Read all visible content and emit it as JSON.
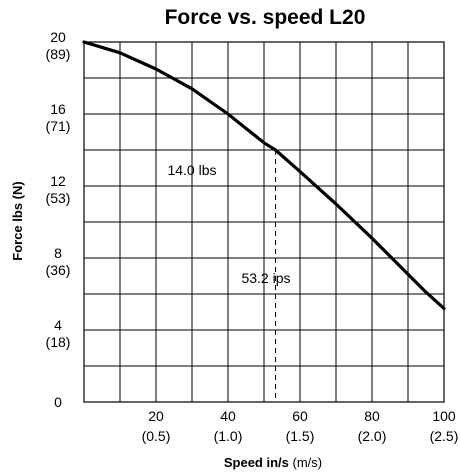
{
  "chart_data": {
    "type": "line",
    "title": "Force vs. speed L20",
    "xlabel_main": "Speed in/s",
    "xlabel_unit": "(m/s)",
    "ylabel": "Force lbs (N)",
    "xlim": [
      0,
      100
    ],
    "ylim": [
      0,
      20
    ],
    "grid": true,
    "x_ticks": [
      {
        "value": 20,
        "label": "20",
        "sub": "(0.5)"
      },
      {
        "value": 40,
        "label": "40",
        "sub": "(1.0)"
      },
      {
        "value": 60,
        "label": "60",
        "sub": "(1.5)"
      },
      {
        "value": 80,
        "label": "80",
        "sub": "(2.0)"
      },
      {
        "value": 100,
        "label": "100",
        "sub": "(2.5)"
      }
    ],
    "y_ticks": [
      {
        "value": 0,
        "label": "0",
        "sub": ""
      },
      {
        "value": 4,
        "label": "4",
        "sub": "(18)"
      },
      {
        "value": 8,
        "label": "8",
        "sub": "(36)"
      },
      {
        "value": 12,
        "label": "12",
        "sub": "(53)"
      },
      {
        "value": 16,
        "label": "16",
        "sub": "(71)"
      },
      {
        "value": 20,
        "label": "20",
        "sub": "(89)"
      }
    ],
    "series": [
      {
        "x": [
          0,
          10,
          20,
          30,
          40,
          50,
          53.2,
          60,
          70,
          80,
          90,
          95,
          100
        ],
        "y": [
          20,
          19.4,
          18.5,
          17.4,
          16.0,
          14.4,
          14.0,
          12.8,
          11.0,
          9.1,
          7.1,
          6.1,
          5.2
        ]
      }
    ],
    "marker": {
      "x": 53.2,
      "y": 14.0
    },
    "annotations": {
      "force_label": "14.0 lbs",
      "speed_label": "53.2 ips"
    }
  }
}
